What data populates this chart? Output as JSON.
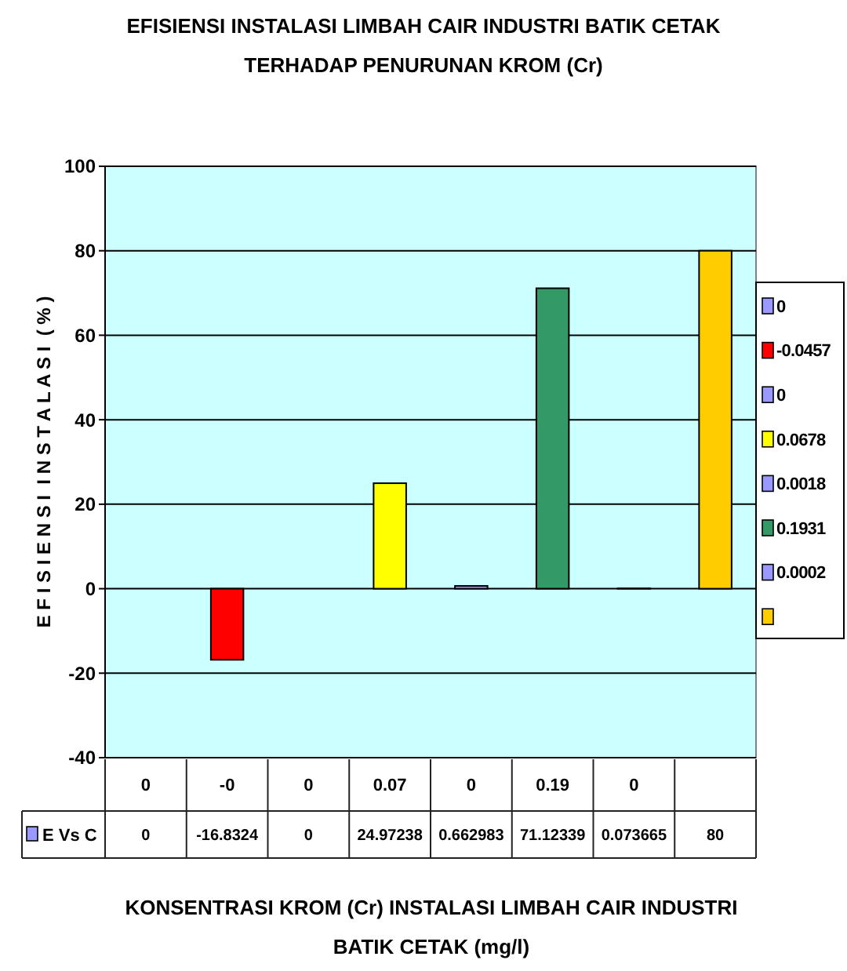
{
  "chart_data": {
    "type": "bar",
    "title": "EFISIENSI INSTALASI LIMBAH CAIR INDUSTRI BATIK CETAK\nTERHADAP PENURUNAN KROM (Cr)",
    "xlabel": "KONSENTRASI KROM (Cr) INSTALASI LIMBAH CAIR INDUSTRI\nBATIK CETAK (mg/l)",
    "ylabel": "E F I S I E N S I  I N S T A L A S I  ( % )",
    "categories": [
      "0",
      "-0",
      "0",
      "0.07",
      "0",
      "0.19",
      "0",
      null
    ],
    "series": [
      {
        "name": "E Vs C",
        "color": "#9999ff",
        "colors": [
          "#9999ff",
          "#ff0000",
          "#9999ff",
          "#ffff00",
          "#9999ff",
          "#339966",
          "#9999ff",
          "#ffcc00"
        ],
        "values": [
          0,
          -16.8324,
          0,
          24.97238,
          0.662983,
          71.12339,
          0.073665,
          80
        ]
      }
    ],
    "annotations": [
      "0",
      "-0.0457",
      "0",
      "0.0678",
      "0.0018",
      "0.1931",
      "0.0002"
    ],
    "data_labels": true,
    "ylim": [
      -40,
      100
    ],
    "yticks": [
      -40,
      -20,
      0,
      20,
      40,
      60,
      80,
      100
    ],
    "grid": "y",
    "legend": "bottom left"
  }
}
